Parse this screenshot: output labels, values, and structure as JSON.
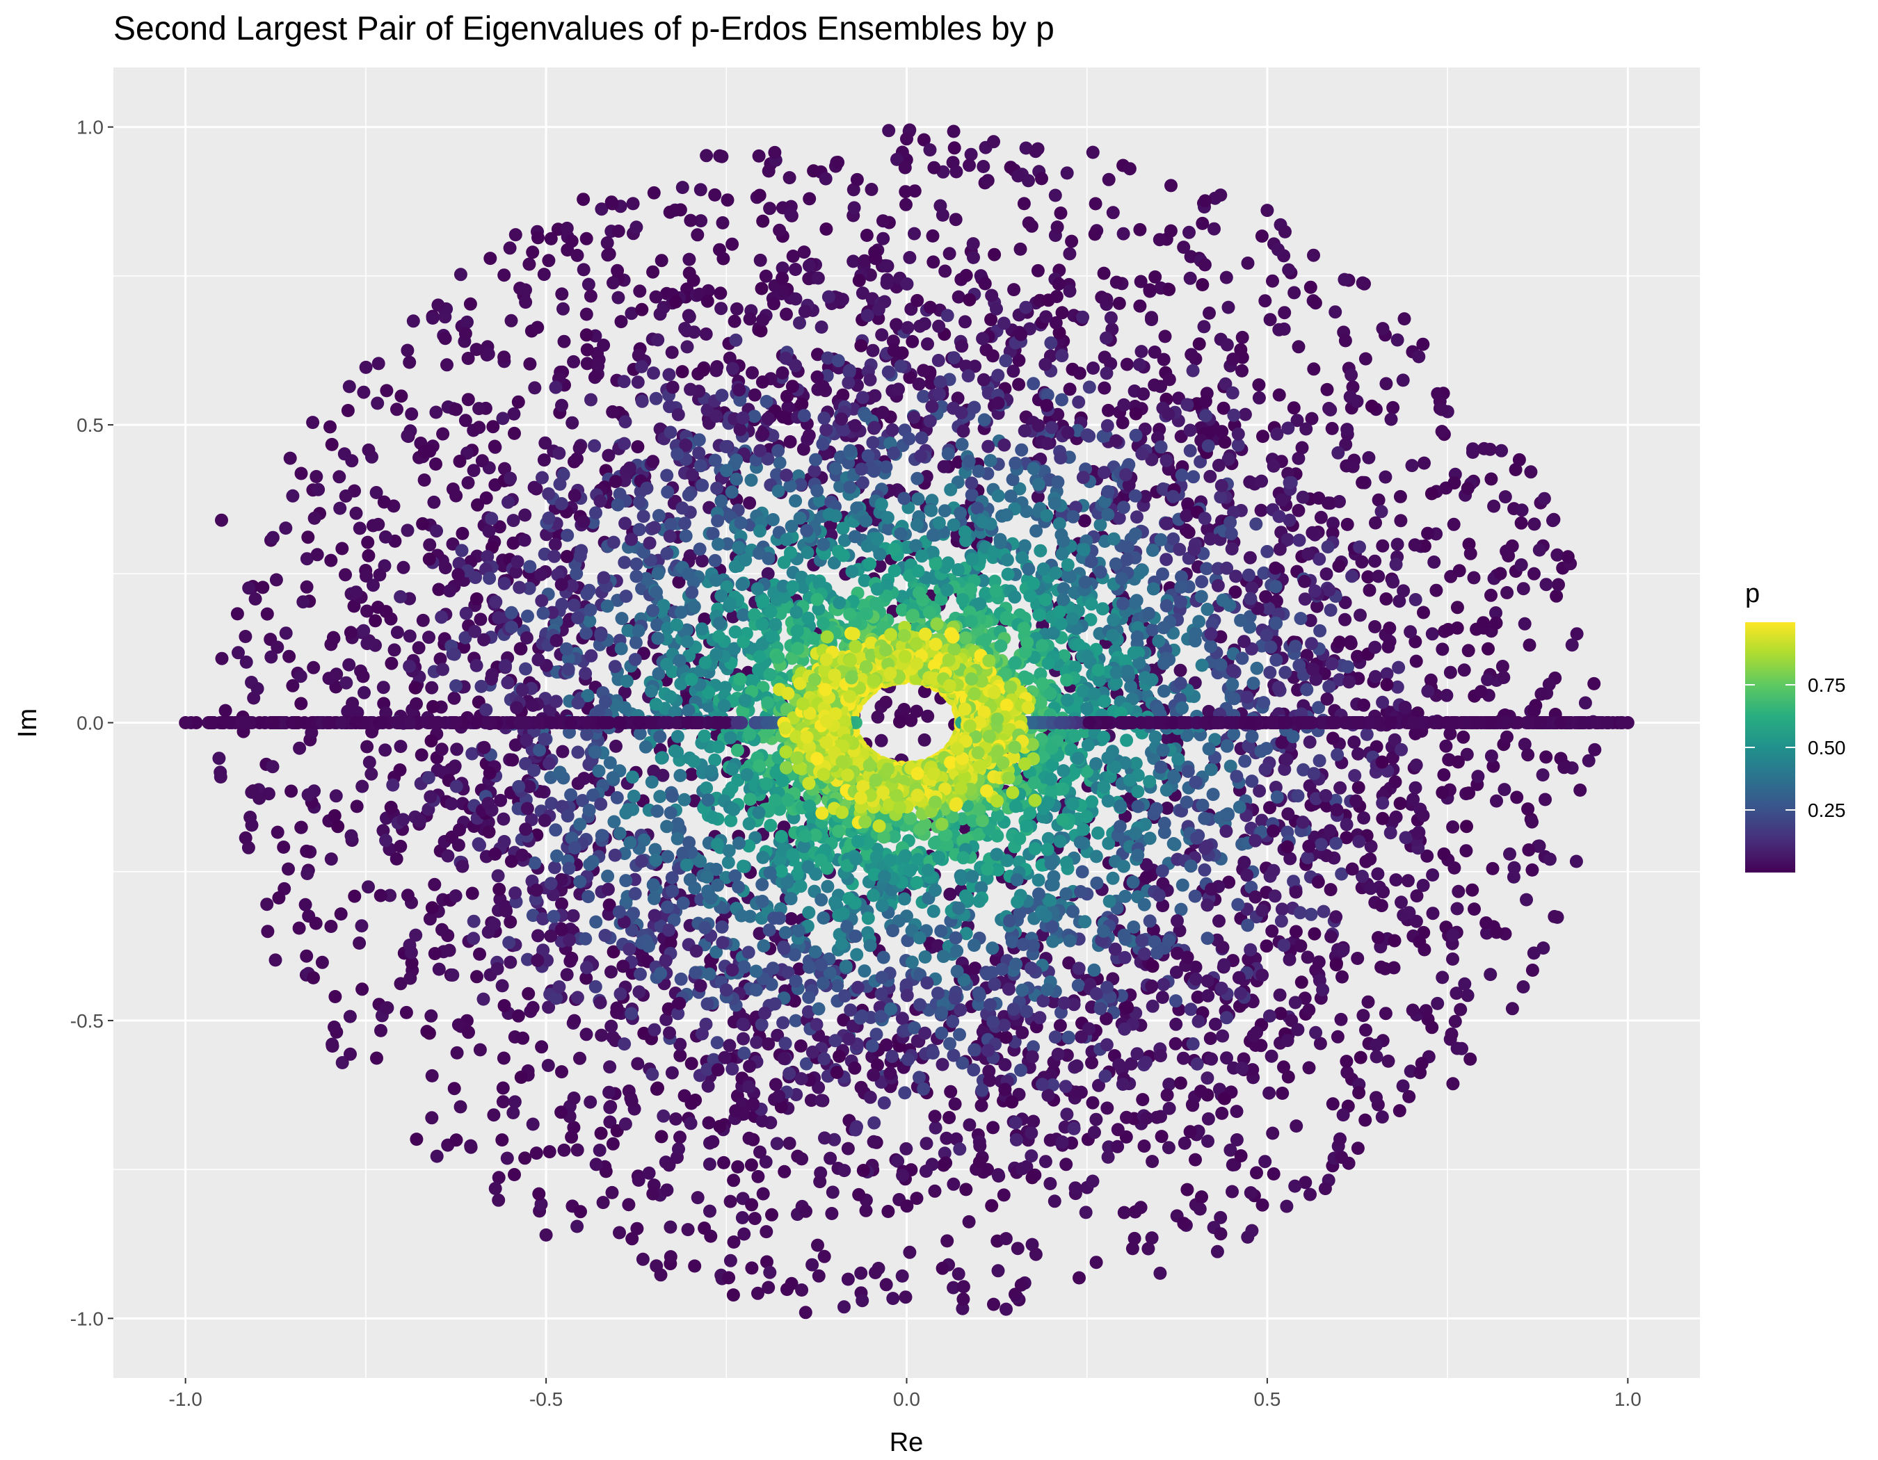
{
  "chart_data": {
    "type": "scatter",
    "title": "Second Largest Pair of Eigenvalues of p-Erdos Ensembles by p",
    "xlabel": "Re",
    "ylabel": "Im",
    "xlim": [
      -1.1,
      1.1
    ],
    "ylim": [
      -1.1,
      1.1
    ],
    "x_ticks": [
      -1.0,
      -0.5,
      0.0,
      0.5,
      1.0
    ],
    "x_tick_labels": [
      "-1.0",
      "-0.5",
      "0.0",
      "0.5",
      "1.0"
    ],
    "y_ticks": [
      -1.0,
      -0.5,
      0.0,
      0.5,
      1.0
    ],
    "y_tick_labels": [
      "-1.0",
      "-0.5",
      "0.0",
      "0.5",
      "1.0"
    ],
    "grid": true,
    "color_variable": "p",
    "colorscale": "viridis",
    "color_range": [
      0.0,
      1.0
    ],
    "legend": {
      "title": "p",
      "placement": "right",
      "ticks": [
        0.25,
        0.5,
        0.75
      ],
      "tick_labels": [
        "0.25",
        "0.50",
        "0.75"
      ]
    },
    "distribution_description": {
      "shape": "complex eigenvalues fill a disk of radius about 1 centered at 0; real eigenvalues lie on the segment Im = 0 from -1.0 to 1.0",
      "relationship": "modulus of eigenvalue decreases as p increases; at p near 1 the points cluster near radius 0.1 leaving an empty hole around the origin",
      "inner_hole_radius": 0.07
    },
    "series": [
      {
        "representative_points": [
          {
            "re": 0.0,
            "im": 0.98,
            "p": 0.02
          },
          {
            "re": 0.87,
            "im": 0.25,
            "p": 0.02
          },
          {
            "re": -0.95,
            "im": 0.34,
            "p": 0.02
          },
          {
            "re": -0.14,
            "im": -0.99,
            "p": 0.02
          },
          {
            "re": 0.84,
            "im": -0.48,
            "p": 0.03
          },
          {
            "re": 0.5,
            "im": 0.86,
            "p": 0.03
          },
          {
            "re": -0.5,
            "im": -0.86,
            "p": 0.03
          },
          {
            "re": 0.3,
            "im": 0.2,
            "p": 0.25
          },
          {
            "re": -0.2,
            "im": -0.3,
            "p": 0.3
          },
          {
            "re": 0.15,
            "im": 0.1,
            "p": 0.6
          },
          {
            "re": -0.1,
            "im": 0.08,
            "p": 0.95
          },
          {
            "re": 1.0,
            "im": 0.0,
            "p": 0.02
          },
          {
            "re": -1.0,
            "im": 0.0,
            "p": 0.02
          }
        ]
      }
    ]
  }
}
